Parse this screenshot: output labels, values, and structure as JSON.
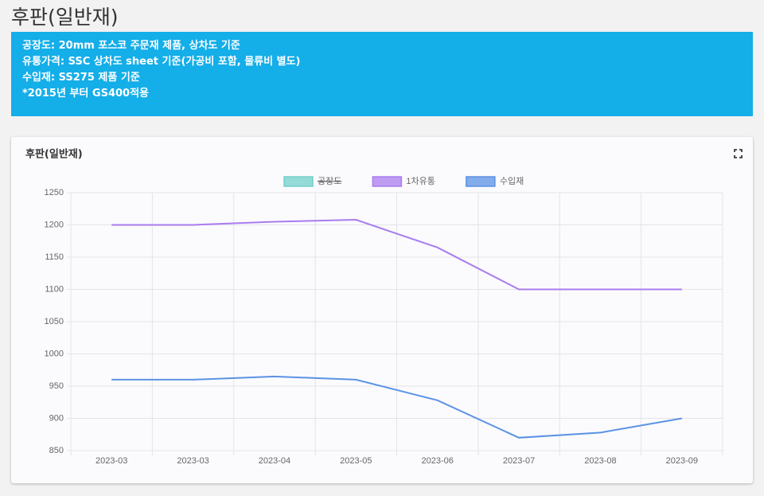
{
  "header": {
    "title": "후판(일반재)"
  },
  "info": {
    "lines": [
      "공장도: 20mm 포스코 주문재 제품, 상차도 기준",
      "유통가격: SSC 상차도 sheet 기준(가공비 포함, 물류비 별도)",
      "수입재: SS275 제품 기준",
      "*2015년 부터 GS400적용"
    ]
  },
  "chart_data": {
    "type": "line",
    "title": "후판(일반재)",
    "categories": [
      "2023-03",
      "2023-03",
      "2023-04",
      "2023-05",
      "2023-06",
      "2023-07",
      "2023-08",
      "2023-09"
    ],
    "series": [
      {
        "name": "공장도",
        "color": "#72cfca",
        "hidden": true,
        "values": [
          null,
          null,
          null,
          null,
          null,
          null,
          null,
          null
        ]
      },
      {
        "name": "1차유통",
        "color": "#a97cee",
        "values": [
          1200,
          1200,
          1205,
          1208,
          1165,
          1100,
          1100,
          1100
        ]
      },
      {
        "name": "수입재",
        "color": "#5b92e4",
        "values": [
          960,
          960,
          965,
          960,
          928,
          870,
          878,
          900
        ]
      }
    ],
    "ylim": [
      850,
      1250
    ],
    "yticks": [
      850,
      900,
      950,
      1000,
      1050,
      1100,
      1150,
      1200,
      1250
    ],
    "grid": true,
    "legend": "top"
  }
}
